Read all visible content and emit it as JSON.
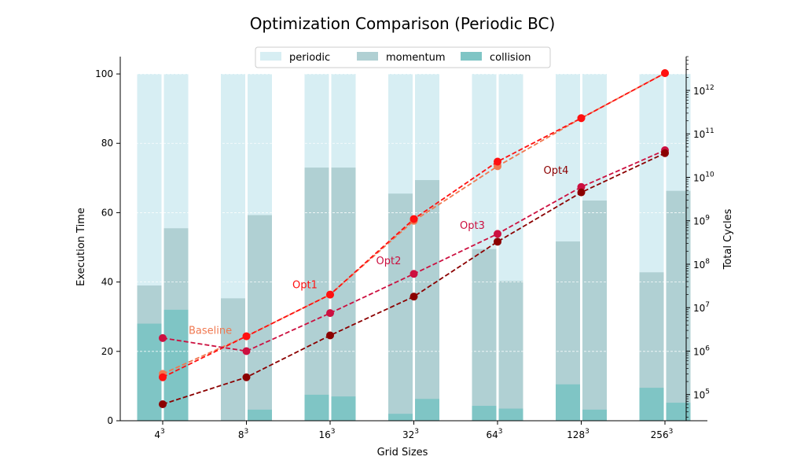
{
  "chart_data": {
    "type": "bar",
    "title": "Optimization Comparison (Periodic BC)",
    "xlabel": "Grid Sizes",
    "ylabel": "Execution Time",
    "y2label": "Total Cycles",
    "ylim": [
      0,
      105
    ],
    "y2_scale": "log",
    "y2lim": [
      25000,
      6000000000000
    ],
    "categories": [
      "4",
      "8",
      "16",
      "32",
      "64",
      "128",
      "256"
    ],
    "category_exponent": "3",
    "yticks": [
      "0",
      "20",
      "40",
      "60",
      "80",
      "100"
    ],
    "y2ticks": [
      {
        "base": "10",
        "exp": "5",
        "value": 100000
      },
      {
        "base": "10",
        "exp": "6",
        "value": 1000000
      },
      {
        "base": "10",
        "exp": "7",
        "value": 10000000
      },
      {
        "base": "10",
        "exp": "8",
        "value": 100000000
      },
      {
        "base": "10",
        "exp": "9",
        "value": 1000000000
      },
      {
        "base": "10",
        "exp": "10",
        "value": 10000000000
      },
      {
        "base": "10",
        "exp": "11",
        "value": 100000000000
      },
      {
        "base": "10",
        "exp": "12",
        "value": 1000000000000
      }
    ],
    "grid": "horizontal-dashed",
    "legend_position": "top-center",
    "bar_legend": [
      {
        "name": "periodic",
        "color": "#d7eef3"
      },
      {
        "name": "momentum",
        "color": "#b0d0d3"
      },
      {
        "name": "collision",
        "color": "#7fc5c5"
      }
    ],
    "bar_groups": [
      {
        "collision": [
          28,
          32
        ],
        "momentum": [
          39,
          55.5
        ],
        "periodic": [
          100,
          100
        ]
      },
      {
        "collision": [
          0,
          3.2
        ],
        "momentum": [
          35.3,
          59.3
        ],
        "periodic": [
          100,
          100
        ]
      },
      {
        "collision": [
          7.5,
          7
        ],
        "momentum": [
          73,
          73
        ],
        "periodic": [
          100,
          100
        ]
      },
      {
        "collision": [
          2,
          6.3
        ],
        "momentum": [
          65.5,
          69.4
        ],
        "periodic": [
          100,
          100
        ]
      },
      {
        "collision": [
          4.3,
          3.5
        ],
        "momentum": [
          49.5,
          40.3
        ],
        "periodic": [
          100,
          100
        ]
      },
      {
        "collision": [
          10.5,
          3.2
        ],
        "momentum": [
          51.7,
          63.5
        ],
        "periodic": [
          100,
          100
        ]
      },
      {
        "collision": [
          9.5,
          5.2
        ],
        "momentum": [
          42.8,
          66.3
        ],
        "periodic": [
          100,
          100
        ]
      }
    ],
    "series": [
      {
        "name": "Baseline",
        "color": "#f07850",
        "values": [
          300000,
          2200000,
          20000000,
          1000000000,
          18000000000,
          230000000000,
          2500000000000
        ]
      },
      {
        "name": "Opt1",
        "color": "#ff1010",
        "values": [
          250000,
          2200000,
          20000000,
          1100000000,
          23000000000,
          230000000000,
          2500000000000
        ]
      },
      {
        "name": "Opt2",
        "color": "#cc1040",
        "values": [
          2000000,
          1000000,
          7500000,
          60000000,
          500000000,
          6000000000,
          42000000000
        ]
      },
      {
        "name": "Opt3",
        "color": "#cc1040",
        "values": null
      },
      {
        "name": "Opt4",
        "color": "#8b0000",
        "values": [
          60000,
          250000,
          2300000,
          18000000,
          330000000,
          4500000000,
          36000000000
        ]
      }
    ],
    "annotations": [
      {
        "text": "Baseline",
        "color": "#f07850",
        "x_index": 0,
        "dx": 33,
        "value": 2500000
      },
      {
        "text": "Opt1",
        "color": "#ff1010",
        "x_index": 2,
        "dx": -48,
        "value": 28000000
      },
      {
        "text": "Opt2",
        "color": "#cc1040",
        "x_index": 3,
        "dx": -48,
        "value": 100000000
      },
      {
        "text": "Opt3",
        "color": "#cc1040",
        "x_index": 4,
        "dx": -48,
        "value": 650000000
      },
      {
        "text": "Opt4",
        "color": "#8b0000",
        "x_index": 5,
        "dx": -48,
        "value": 12000000000
      }
    ]
  }
}
